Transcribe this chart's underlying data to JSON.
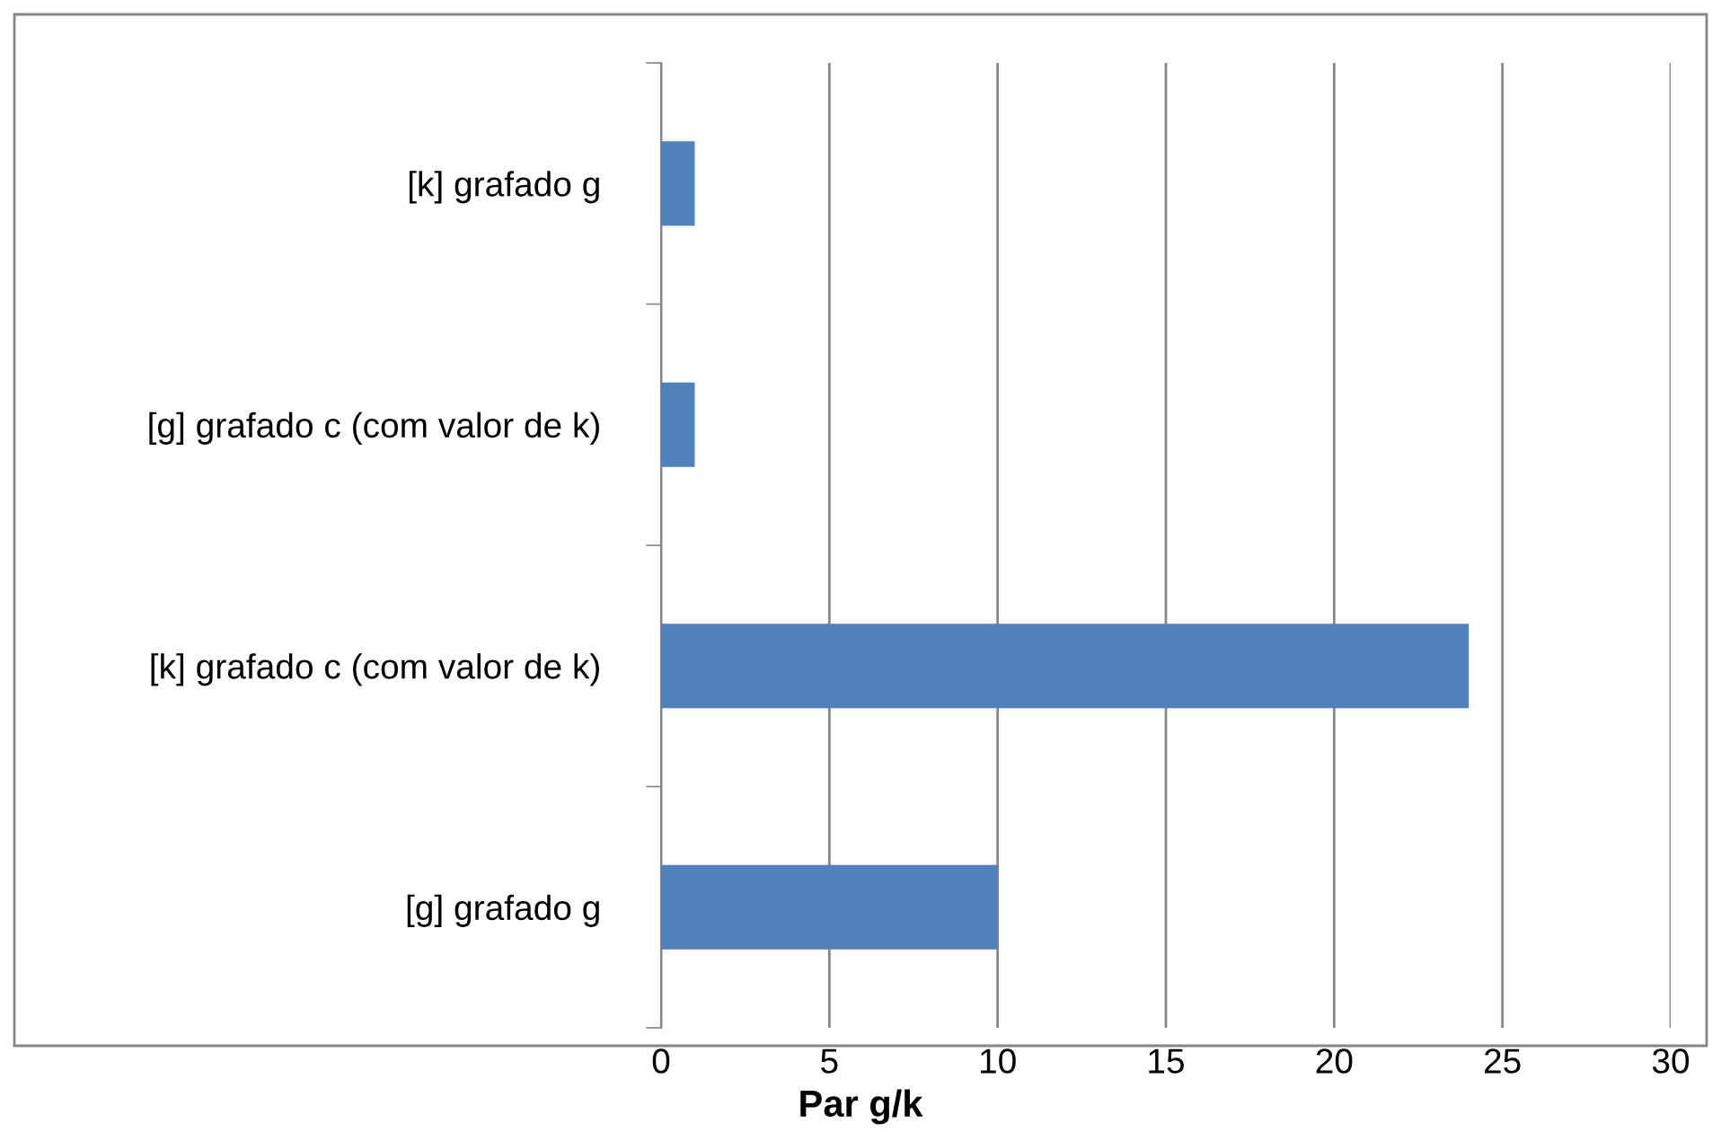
{
  "chart_data": {
    "type": "bar",
    "orientation": "horizontal",
    "xlabel": "Par g/k",
    "categories": [
      "[k] grafado g",
      "[g] grafado c (com valor de k)",
      "[k] grafado c (com valor de k)",
      "[g] grafado g"
    ],
    "values": [
      1,
      1,
      24,
      10
    ],
    "color": "#4f81bd",
    "xlim": [
      0,
      30
    ],
    "xticks": [
      0,
      5,
      10,
      15,
      20,
      25,
      30
    ],
    "grid": "x",
    "legend": false
  }
}
